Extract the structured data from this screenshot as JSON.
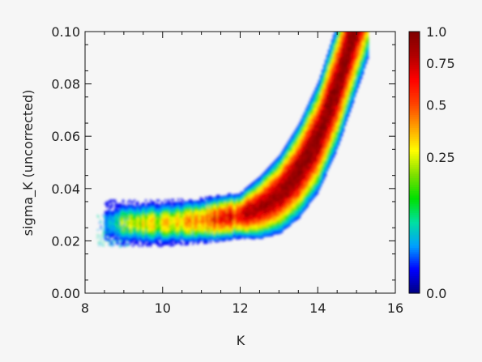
{
  "chart_data": {
    "type": "heatmap",
    "title": "",
    "xlabel": "K",
    "ylabel": "sigma_K (uncorrected)",
    "xlim": [
      8,
      16
    ],
    "ylim": [
      0.0,
      0.1
    ],
    "x_ticks": [
      8,
      10,
      12,
      14,
      16
    ],
    "x_tick_labels": [
      "8",
      "10",
      "12",
      "14",
      "16"
    ],
    "y_ticks": [
      0.0,
      0.02,
      0.04,
      0.06,
      0.08,
      0.1
    ],
    "y_tick_labels": [
      "0.00",
      "0.02",
      "0.04",
      "0.06",
      "0.08",
      "0.10"
    ],
    "grid": false,
    "colorbar": {
      "min": 0.0,
      "max": 1.0,
      "tick_values": [
        0.0,
        0.25,
        0.5,
        0.75,
        1.0
      ],
      "tick_labels": [
        "0.0",
        "0.25",
        "0.5",
        "0.75",
        "1.0"
      ],
      "colormap": "rainbow (navy-blue-cyan-green-yellow-orange-red-darkred)",
      "stops": [
        "#00007f",
        "#0000ff",
        "#00a0ff",
        "#00e0a0",
        "#00e000",
        "#80e000",
        "#ffff00",
        "#ffa000",
        "#ff4000",
        "#ff0000",
        "#b00000",
        "#800000"
      ]
    },
    "density_ridge": {
      "description": "Peak density of sigma_K versus K",
      "k": [
        8.6,
        9.0,
        9.5,
        10.0,
        10.5,
        11.0,
        11.5,
        12.0,
        12.5,
        13.0,
        13.5,
        14.0,
        14.5,
        14.9
      ],
      "sigma_k": [
        0.027,
        0.027,
        0.027,
        0.027,
        0.0275,
        0.028,
        0.029,
        0.03,
        0.033,
        0.038,
        0.047,
        0.06,
        0.08,
        0.1
      ],
      "peak_density": [
        0.1,
        0.25,
        0.3,
        0.35,
        0.4,
        0.55,
        0.7,
        0.8,
        0.9,
        0.95,
        1.0,
        1.0,
        1.0,
        1.0
      ]
    }
  }
}
